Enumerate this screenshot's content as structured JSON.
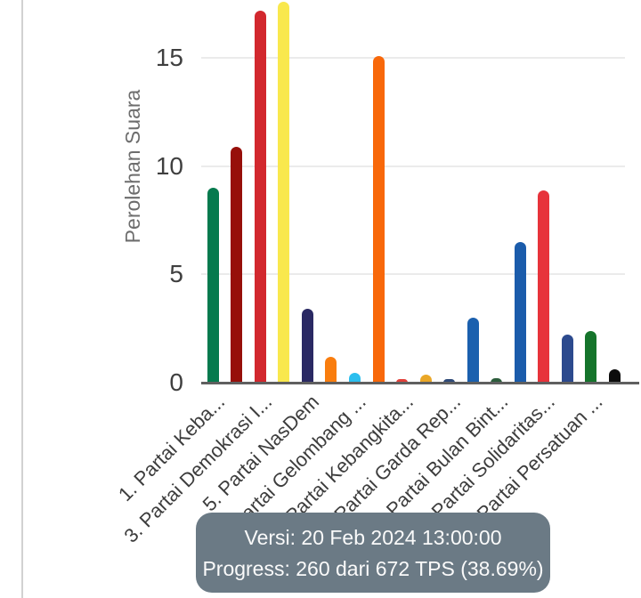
{
  "chart_data": {
    "type": "bar",
    "title": "",
    "xlabel": "",
    "ylabel": "Perolehan Suara",
    "ylim": [
      0,
      17.7
    ],
    "y_ticks": [
      0,
      5,
      10,
      15
    ],
    "grid": true,
    "legend": "none",
    "x_labels_rotation_deg": -45,
    "bars": [
      {
        "index": 1,
        "axis_label": "1. Partai Keba...",
        "value": 9.0,
        "color": "#057a4e"
      },
      {
        "index": 2,
        "axis_label": "",
        "value": 10.9,
        "color": "#970f0a"
      },
      {
        "index": 3,
        "axis_label": "3. Partai Demokrasi I...",
        "value": 17.2,
        "color": "#d2282e"
      },
      {
        "index": 4,
        "axis_label": "",
        "value": 17.6,
        "color": "#f9e84d"
      },
      {
        "index": 5,
        "axis_label": "5. Partai NasDem",
        "value": 3.4,
        "color": "#2a2963"
      },
      {
        "index": 6,
        "axis_label": "",
        "value": 1.2,
        "color": "#f97d0e"
      },
      {
        "index": 7,
        "axis_label": "7. Partai Gelombang ...",
        "value": 0.45,
        "color": "#2bbeee"
      },
      {
        "index": 8,
        "axis_label": "",
        "value": 15.1,
        "color": "#f8680a"
      },
      {
        "index": 9,
        "axis_label": "9. Partai Kebangkita...",
        "value": 0.15,
        "color": "#e2403a"
      },
      {
        "index": 10,
        "axis_label": "",
        "value": 0.35,
        "color": "#eaa727"
      },
      {
        "index": 11,
        "axis_label": "11. Partai Garda Rep...",
        "value": 0.15,
        "color": "#2f4a78"
      },
      {
        "index": 12,
        "axis_label": "",
        "value": 3.0,
        "color": "#1b60ae"
      },
      {
        "index": 13,
        "axis_label": "13. Partai Bulan Bint...",
        "value": 0.2,
        "color": "#2d5d3c"
      },
      {
        "index": 14,
        "axis_label": "",
        "value": 6.5,
        "color": "#1b5cab"
      },
      {
        "index": 15,
        "axis_label": "15. Partai Solidaritas...",
        "value": 8.9,
        "color": "#e7333b"
      },
      {
        "index": 16,
        "axis_label": "",
        "value": 2.2,
        "color": "#2c4a8e"
      },
      {
        "index": 17,
        "axis_label": "17. Partai Persatuan ...",
        "value": 2.4,
        "color": "#15742b"
      },
      {
        "index": 18,
        "axis_label": "",
        "value": 0.6,
        "color": "#0c0c0c"
      }
    ],
    "colors": {
      "baseline": "#5f5f5f",
      "gridline": "#ebebeb",
      "tick_label": "#3f3f3f",
      "axis_title": "#6d6d6d"
    }
  },
  "tooltip": {
    "line1": "Versi: 20 Feb 2024 13:00:00",
    "line2": "Progress: 260 dari 672 TPS (38.69%)",
    "background": "#6b7a85",
    "text_color": "#fafafa"
  }
}
